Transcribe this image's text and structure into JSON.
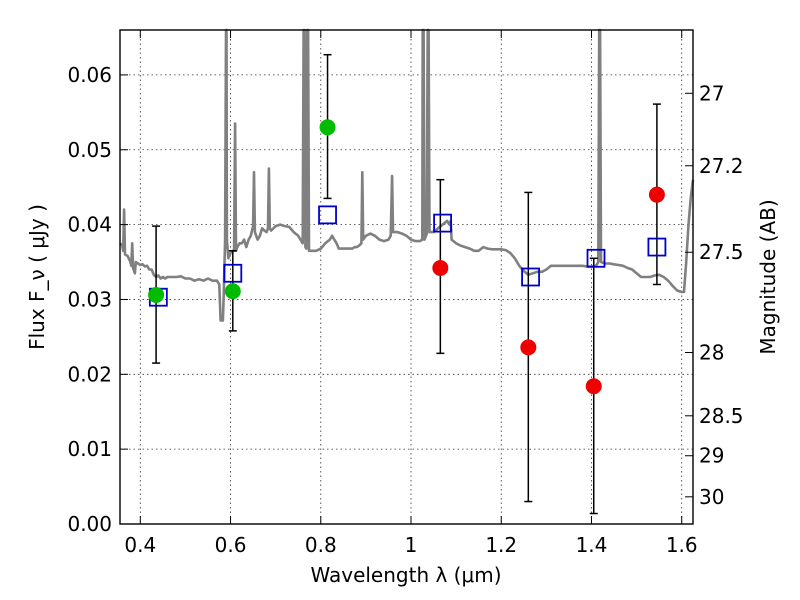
{
  "chart_data": {
    "type": "scatter",
    "title": "",
    "xlabel": "Wavelength  λ (μm)",
    "ylabel": "Flux  F_ν  ( μJy )",
    "ylabel_right": "Magnitude (AB)",
    "xlim": [
      0.355,
      1.625
    ],
    "ylim": [
      0.0,
      0.066
    ],
    "grid": true,
    "x_ticks": [
      {
        "value": 0.4,
        "label": "0.4"
      },
      {
        "value": 0.6,
        "label": "0.6"
      },
      {
        "value": 0.8,
        "label": "0.8"
      },
      {
        "value": 1.0,
        "label": "1"
      },
      {
        "value": 1.2,
        "label": "1.2"
      },
      {
        "value": 1.4,
        "label": "1.4"
      },
      {
        "value": 1.6,
        "label": "1.6"
      }
    ],
    "y_ticks": [
      {
        "value": 0.0,
        "label": "0.00"
      },
      {
        "value": 0.01,
        "label": "0.01"
      },
      {
        "value": 0.02,
        "label": "0.02"
      },
      {
        "value": 0.03,
        "label": "0.03"
      },
      {
        "value": 0.04,
        "label": "0.04"
      },
      {
        "value": 0.05,
        "label": "0.05"
      },
      {
        "value": 0.06,
        "label": "0.06"
      }
    ],
    "y_right_ticks": [
      {
        "value": 27,
        "label": "27"
      },
      {
        "value": 27.2,
        "label": "27.2"
      },
      {
        "value": 27.5,
        "label": "27.5"
      },
      {
        "value": 28,
        "label": "28"
      },
      {
        "value": 28.5,
        "label": "28.5"
      },
      {
        "value": 29,
        "label": "29"
      },
      {
        "value": 30,
        "label": "30"
      }
    ],
    "model_spectrum": {
      "color": "#808080",
      "points": [
        [
          0.355,
          0.0375
        ],
        [
          0.36,
          0.0372
        ],
        [
          0.362,
          0.0365
        ],
        [
          0.364,
          0.042
        ],
        [
          0.366,
          0.036
        ],
        [
          0.372,
          0.0358
        ],
        [
          0.378,
          0.035
        ],
        [
          0.38,
          0.0345
        ],
        [
          0.382,
          0.0375
        ],
        [
          0.384,
          0.0342
        ],
        [
          0.388,
          0.0335
        ],
        [
          0.39,
          0.035
        ],
        [
          0.395,
          0.0348
        ],
        [
          0.4,
          0.0346
        ],
        [
          0.405,
          0.0347
        ],
        [
          0.41,
          0.0344
        ],
        [
          0.415,
          0.0345
        ],
        [
          0.42,
          0.034
        ],
        [
          0.425,
          0.034
        ],
        [
          0.43,
          0.0333
        ],
        [
          0.435,
          0.033
        ],
        [
          0.44,
          0.0332
        ],
        [
          0.445,
          0.0328
        ],
        [
          0.45,
          0.033
        ],
        [
          0.455,
          0.0328
        ],
        [
          0.46,
          0.033
        ],
        [
          0.47,
          0.033
        ],
        [
          0.48,
          0.033
        ],
        [
          0.49,
          0.0331
        ],
        [
          0.5,
          0.0328
        ],
        [
          0.51,
          0.0328
        ],
        [
          0.52,
          0.0325
        ],
        [
          0.53,
          0.0327
        ],
        [
          0.54,
          0.0325
        ],
        [
          0.55,
          0.0328
        ],
        [
          0.56,
          0.0325
        ],
        [
          0.57,
          0.0325
        ],
        [
          0.575,
          0.032
        ],
        [
          0.578,
          0.0272
        ],
        [
          0.583,
          0.0272
        ],
        [
          0.585,
          0.031
        ],
        [
          0.588,
          0.038
        ],
        [
          0.59,
          0.066
        ],
        [
          0.591,
          0.066
        ],
        [
          0.592,
          0.038
        ],
        [
          0.595,
          0.0355
        ],
        [
          0.6,
          0.0362
        ],
        [
          0.605,
          0.0365
        ],
        [
          0.608,
          0.0365
        ],
        [
          0.61,
          0.0535
        ],
        [
          0.612,
          0.0365
        ],
        [
          0.615,
          0.037
        ],
        [
          0.62,
          0.0375
        ],
        [
          0.625,
          0.0375
        ],
        [
          0.63,
          0.038
        ],
        [
          0.635,
          0.037
        ],
        [
          0.64,
          0.038
        ],
        [
          0.645,
          0.0385
        ],
        [
          0.65,
          0.0398
        ],
        [
          0.652,
          0.047
        ],
        [
          0.654,
          0.039
        ],
        [
          0.66,
          0.038
        ],
        [
          0.665,
          0.0385
        ],
        [
          0.67,
          0.0395
        ],
        [
          0.675,
          0.0392
        ],
        [
          0.68,
          0.039
        ],
        [
          0.683,
          0.0395
        ],
        [
          0.685,
          0.0475
        ],
        [
          0.687,
          0.0395
        ],
        [
          0.69,
          0.0392
        ],
        [
          0.7,
          0.0398
        ],
        [
          0.71,
          0.04
        ],
        [
          0.72,
          0.0398
        ],
        [
          0.73,
          0.0397
        ],
        [
          0.74,
          0.039
        ],
        [
          0.75,
          0.0385
        ],
        [
          0.755,
          0.038
        ],
        [
          0.76,
          0.0375
        ],
        [
          0.762,
          0.066
        ],
        [
          0.764,
          0.066
        ],
        [
          0.766,
          0.037
        ],
        [
          0.768,
          0.0368
        ],
        [
          0.77,
          0.066
        ],
        [
          0.772,
          0.066
        ],
        [
          0.774,
          0.0365
        ],
        [
          0.78,
          0.0365
        ],
        [
          0.79,
          0.0365
        ],
        [
          0.8,
          0.0368
        ],
        [
          0.81,
          0.0375
        ],
        [
          0.82,
          0.038
        ],
        [
          0.825,
          0.0385
        ],
        [
          0.83,
          0.038
        ],
        [
          0.835,
          0.0375
        ],
        [
          0.84,
          0.0368
        ],
        [
          0.85,
          0.0368
        ],
        [
          0.86,
          0.0368
        ],
        [
          0.87,
          0.0368
        ],
        [
          0.875,
          0.037
        ],
        [
          0.88,
          0.037
        ],
        [
          0.885,
          0.0372
        ],
        [
          0.89,
          0.0375
        ],
        [
          0.892,
          0.047
        ],
        [
          0.894,
          0.038
        ],
        [
          0.9,
          0.0385
        ],
        [
          0.91,
          0.0388
        ],
        [
          0.92,
          0.0385
        ],
        [
          0.93,
          0.038
        ],
        [
          0.94,
          0.0378
        ],
        [
          0.95,
          0.038
        ],
        [
          0.955,
          0.0385
        ],
        [
          0.958,
          0.0465
        ],
        [
          0.96,
          0.039
        ],
        [
          0.97,
          0.039
        ],
        [
          0.98,
          0.0388
        ],
        [
          0.99,
          0.0385
        ],
        [
          1.0,
          0.038
        ],
        [
          1.01,
          0.0378
        ],
        [
          1.02,
          0.0378
        ],
        [
          1.025,
          0.038
        ],
        [
          1.026,
          0.066
        ],
        [
          1.028,
          0.066
        ],
        [
          1.03,
          0.038
        ],
        [
          1.035,
          0.0388
        ],
        [
          1.037,
          0.066
        ],
        [
          1.039,
          0.066
        ],
        [
          1.041,
          0.039
        ],
        [
          1.05,
          0.039
        ],
        [
          1.06,
          0.0395
        ],
        [
          1.07,
          0.04
        ],
        [
          1.08,
          0.0405
        ],
        [
          1.085,
          0.04
        ],
        [
          1.088,
          0.0405
        ],
        [
          1.09,
          0.038
        ],
        [
          1.1,
          0.0375
        ],
        [
          1.11,
          0.0372
        ],
        [
          1.12,
          0.037
        ],
        [
          1.13,
          0.0368
        ],
        [
          1.14,
          0.0365
        ],
        [
          1.15,
          0.0365
        ],
        [
          1.16,
          0.037
        ],
        [
          1.17,
          0.0368
        ],
        [
          1.18,
          0.0367
        ],
        [
          1.19,
          0.0367
        ],
        [
          1.2,
          0.0367
        ],
        [
          1.21,
          0.0366
        ],
        [
          1.22,
          0.0362
        ],
        [
          1.23,
          0.0355
        ],
        [
          1.24,
          0.0345
        ],
        [
          1.25,
          0.0338
        ],
        [
          1.26,
          0.0333
        ],
        [
          1.27,
          0.0335
        ],
        [
          1.28,
          0.0337
        ],
        [
          1.29,
          0.0337
        ],
        [
          1.3,
          0.034
        ],
        [
          1.31,
          0.0345
        ],
        [
          1.32,
          0.0345
        ],
        [
          1.33,
          0.0345
        ],
        [
          1.34,
          0.0345
        ],
        [
          1.35,
          0.0345
        ],
        [
          1.36,
          0.0345
        ],
        [
          1.37,
          0.0345
        ],
        [
          1.38,
          0.0345
        ],
        [
          1.39,
          0.0344
        ],
        [
          1.4,
          0.0344
        ],
        [
          1.41,
          0.0345
        ],
        [
          1.415,
          0.035
        ],
        [
          1.417,
          0.066
        ],
        [
          1.419,
          0.066
        ],
        [
          1.421,
          0.035
        ],
        [
          1.43,
          0.0348
        ],
        [
          1.44,
          0.0348
        ],
        [
          1.45,
          0.0347
        ],
        [
          1.46,
          0.0346
        ],
        [
          1.47,
          0.0345
        ],
        [
          1.48,
          0.0342
        ],
        [
          1.49,
          0.034
        ],
        [
          1.5,
          0.0335
        ],
        [
          1.51,
          0.033
        ],
        [
          1.52,
          0.033
        ],
        [
          1.53,
          0.033
        ],
        [
          1.54,
          0.0332
        ],
        [
          1.55,
          0.0333
        ],
        [
          1.56,
          0.033
        ],
        [
          1.57,
          0.0325
        ],
        [
          1.58,
          0.0318
        ],
        [
          1.59,
          0.0312
        ],
        [
          1.6,
          0.031
        ],
        [
          1.605,
          0.031
        ],
        [
          1.61,
          0.035
        ],
        [
          1.615,
          0.04
        ],
        [
          1.62,
          0.0435
        ],
        [
          1.625,
          0.046
        ]
      ]
    },
    "series": [
      {
        "marker": "open-square",
        "color": "#0000cc",
        "points": [
          {
            "x": 0.44,
            "y": 0.0303
          },
          {
            "x": 0.605,
            "y": 0.0335
          },
          {
            "x": 0.815,
            "y": 0.0413
          },
          {
            "x": 1.07,
            "y": 0.0402
          },
          {
            "x": 1.265,
            "y": 0.033
          },
          {
            "x": 1.41,
            "y": 0.0355
          },
          {
            "x": 1.545,
            "y": 0.037
          }
        ]
      },
      {
        "marker": "filled-circle",
        "color": "#00bb00",
        "points": [
          {
            "x": 0.435,
            "y": 0.0306,
            "err_low": 0.0215,
            "err_high": 0.0398
          },
          {
            "x": 0.605,
            "y": 0.0311,
            "err_low": 0.0258,
            "err_high": 0.0365
          },
          {
            "x": 0.815,
            "y": 0.053,
            "err_low": 0.0435,
            "err_high": 0.0627
          }
        ]
      },
      {
        "marker": "filled-circle",
        "color": "#ee0000",
        "points": [
          {
            "x": 1.065,
            "y": 0.0342,
            "err_low": 0.0228,
            "err_high": 0.046
          },
          {
            "x": 1.26,
            "y": 0.0236,
            "err_low": 0.003,
            "err_high": 0.0443
          },
          {
            "x": 1.405,
            "y": 0.0184,
            "err_low": 0.0014,
            "err_high": 0.0355
          },
          {
            "x": 1.545,
            "y": 0.044,
            "err_low": 0.032,
            "err_high": 0.0561
          }
        ]
      }
    ]
  }
}
